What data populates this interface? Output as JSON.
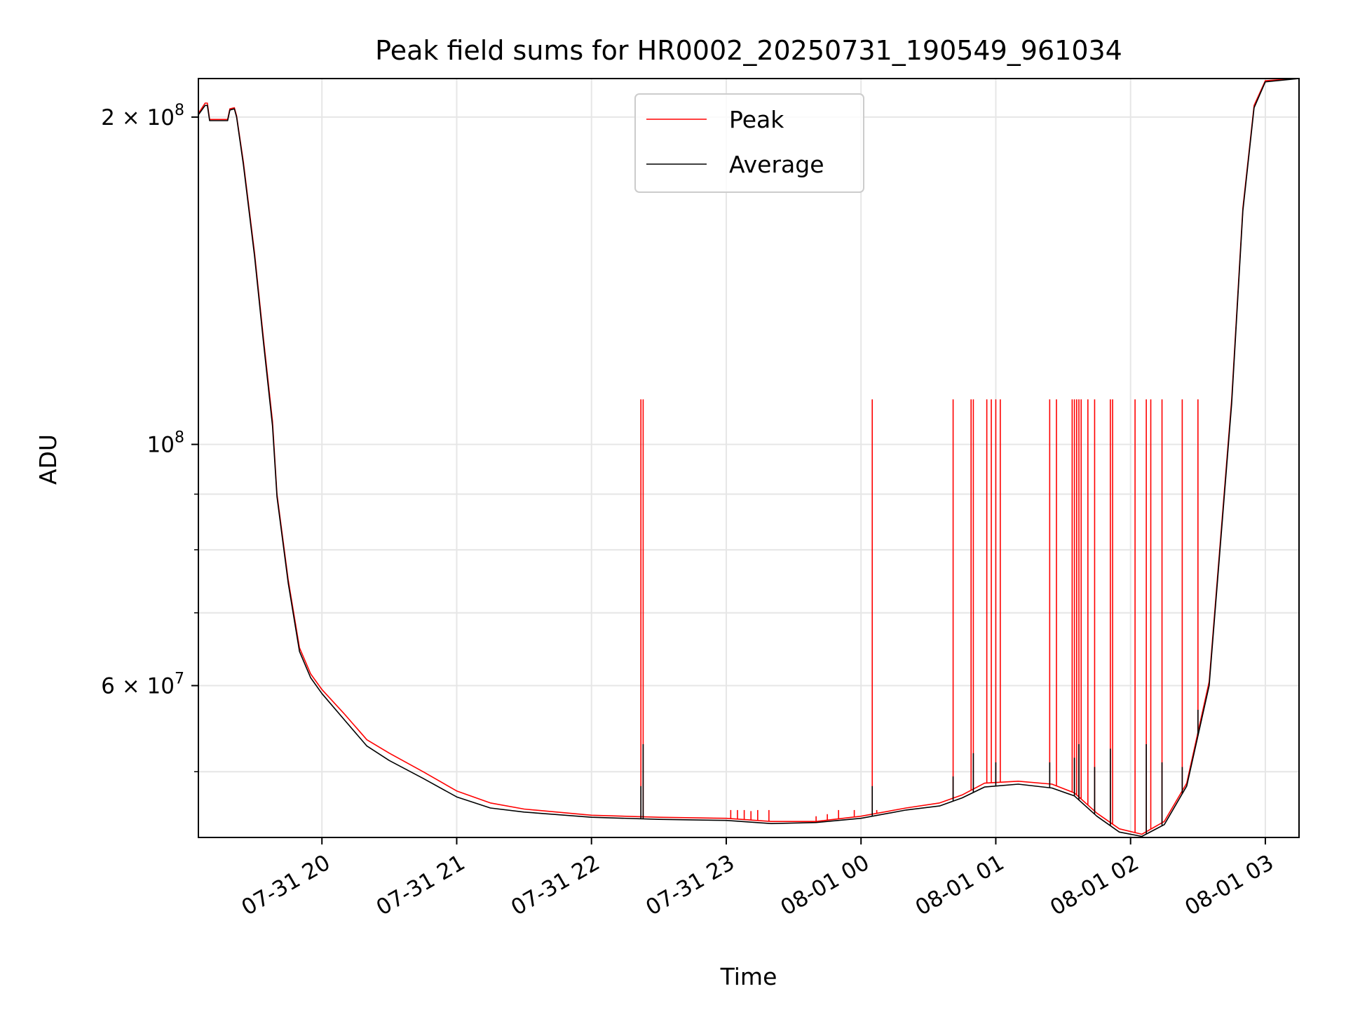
{
  "chart_data": {
    "type": "line",
    "title": "Peak field sums for HR0002_20250731_190549_961034",
    "xlabel": "Time",
    "ylabel": "ADU",
    "y_scale": "log",
    "x_unit": "time",
    "xlim": [
      "07-31 19:05",
      "08-01 03:15"
    ],
    "ylim": [
      43500000,
      217000000
    ],
    "x_ticks": [
      "07-31 20",
      "07-31 21",
      "07-31 22",
      "07-31 23",
      "08-01 00",
      "08-01 01",
      "08-01 02",
      "08-01 03"
    ],
    "x_tick_times": [
      "07-31 20:00",
      "07-31 21:00",
      "07-31 22:00",
      "07-31 23:00",
      "08-01 00:00",
      "08-01 01:00",
      "08-01 02:00",
      "08-01 03:00"
    ],
    "y_ticks_major": [
      {
        "value": 200000000,
        "mant": "2 × 10",
        "exp": "8"
      },
      {
        "value": 100000000,
        "mant": "10",
        "exp": "8"
      },
      {
        "value": 60000000,
        "mant": "6 × 10",
        "exp": "7"
      }
    ],
    "y_ticks_minor": [
      50000000,
      70000000,
      80000000,
      90000000
    ],
    "grid": true,
    "legend_position": "top-center",
    "series": [
      {
        "name": "Peak",
        "color": "#ff0000",
        "points": [
          [
            "07-31 19:05",
            201500000
          ],
          [
            "07-31 19:08",
            206000000
          ],
          [
            "07-31 19:09",
            206000000
          ],
          [
            "07-31 19:10",
            199000000
          ],
          [
            "07-31 19:18",
            199000000
          ],
          [
            "07-31 19:19",
            203500000
          ],
          [
            "07-31 19:21",
            204000000
          ],
          [
            "07-31 19:22",
            200500000
          ],
          [
            "07-31 19:25",
            182000000
          ],
          [
            "07-31 19:30",
            150000000
          ],
          [
            "07-31 19:34",
            125000000
          ],
          [
            "07-31 19:38",
            105000000
          ],
          [
            "07-31 19:40",
            90000000
          ],
          [
            "07-31 19:45",
            75000000
          ],
          [
            "07-31 19:50",
            65000000
          ],
          [
            "07-31 19:55",
            61500000
          ],
          [
            "07-31 20:00",
            59500000
          ],
          [
            "07-31 20:10",
            56500000
          ],
          [
            "07-31 20:20",
            53500000
          ],
          [
            "07-31 20:30",
            52000000
          ],
          [
            "07-31 20:45",
            50000000
          ],
          [
            "07-31 21:00",
            48000000
          ],
          [
            "07-31 21:15",
            46800000
          ],
          [
            "07-31 21:30",
            46200000
          ],
          [
            "07-31 22:00",
            45600000
          ],
          [
            "07-31 22:30",
            45400000
          ],
          [
            "07-31 23:00",
            45300000
          ],
          [
            "07-31 23:20",
            45000000
          ],
          [
            "07-31 23:40",
            45000000
          ],
          [
            "08-01 00:00",
            45500000
          ],
          [
            "08-01 00:20",
            46300000
          ],
          [
            "08-01 00:35",
            46800000
          ],
          [
            "08-01 00:45",
            47600000
          ],
          [
            "08-01 00:55",
            48800000
          ],
          [
            "08-01 01:10",
            49000000
          ],
          [
            "08-01 01:25",
            48700000
          ],
          [
            "08-01 01:35",
            47800000
          ],
          [
            "08-01 01:45",
            45800000
          ],
          [
            "08-01 01:55",
            44300000
          ],
          [
            "08-01 02:05",
            43800000
          ],
          [
            "08-01 02:15",
            45000000
          ],
          [
            "08-01 02:25",
            48800000
          ],
          [
            "08-01 02:35",
            60500000
          ],
          [
            "08-01 02:45",
            110000000
          ],
          [
            "08-01 02:50",
            165000000
          ],
          [
            "08-01 02:55",
            205000000
          ],
          [
            "08-01 03:00",
            216000000
          ],
          [
            "08-01 03:15",
            217000000
          ]
        ]
      },
      {
        "name": "Average",
        "color": "#000000",
        "points": [
          [
            "07-31 19:05",
            201000000
          ],
          [
            "07-31 19:08",
            205000000
          ],
          [
            "07-31 19:09",
            205000000
          ],
          [
            "07-31 19:10",
            198500000
          ],
          [
            "07-31 19:18",
            198500000
          ],
          [
            "07-31 19:19",
            203000000
          ],
          [
            "07-31 19:21",
            203500000
          ],
          [
            "07-31 19:22",
            200000000
          ],
          [
            "07-31 19:25",
            181000000
          ],
          [
            "07-31 19:30",
            149000000
          ],
          [
            "07-31 19:34",
            124000000
          ],
          [
            "07-31 19:38",
            104000000
          ],
          [
            "07-31 19:40",
            89500000
          ],
          [
            "07-31 19:45",
            74500000
          ],
          [
            "07-31 19:50",
            64500000
          ],
          [
            "07-31 19:55",
            61000000
          ],
          [
            "07-31 20:00",
            59000000
          ],
          [
            "07-31 20:10",
            55800000
          ],
          [
            "07-31 20:20",
            52800000
          ],
          [
            "07-31 20:30",
            51200000
          ],
          [
            "07-31 20:45",
            49300000
          ],
          [
            "07-31 21:00",
            47400000
          ],
          [
            "07-31 21:15",
            46300000
          ],
          [
            "07-31 21:30",
            45900000
          ],
          [
            "07-31 22:00",
            45400000
          ],
          [
            "07-31 22:30",
            45200000
          ],
          [
            "07-31 23:00",
            45100000
          ],
          [
            "07-31 23:20",
            44800000
          ],
          [
            "07-31 23:40",
            44900000
          ],
          [
            "08-01 00:00",
            45300000
          ],
          [
            "08-01 00:20",
            46100000
          ],
          [
            "08-01 00:35",
            46500000
          ],
          [
            "08-01 00:45",
            47300000
          ],
          [
            "08-01 00:55",
            48400000
          ],
          [
            "08-01 01:10",
            48700000
          ],
          [
            "08-01 01:25",
            48300000
          ],
          [
            "08-01 01:35",
            47500000
          ],
          [
            "08-01 01:45",
            45500000
          ],
          [
            "08-01 01:55",
            44000000
          ],
          [
            "08-01 02:05",
            43600000
          ],
          [
            "08-01 02:15",
            44700000
          ],
          [
            "08-01 02:25",
            48500000
          ],
          [
            "08-01 02:35",
            60000000
          ],
          [
            "08-01 02:45",
            109000000
          ],
          [
            "08-01 02:50",
            164000000
          ],
          [
            "08-01 02:55",
            204000000
          ],
          [
            "08-01 03:00",
            215500000
          ],
          [
            "08-01 03:15",
            217000000
          ]
        ]
      }
    ],
    "peak_spikes": [
      [
        "07-31 22:22",
        110000000
      ],
      [
        "07-31 22:23",
        110000000
      ],
      [
        "08-01 00:05",
        110000000
      ],
      [
        "08-01 00:41",
        110000000
      ],
      [
        "08-01 00:49",
        110000000
      ],
      [
        "08-01 00:50",
        110000000
      ],
      [
        "08-01 00:56",
        110000000
      ],
      [
        "08-01 00:58",
        110000000
      ],
      [
        "08-01 01:00",
        110000000
      ],
      [
        "08-01 01:02",
        110000000
      ],
      [
        "08-01 01:24",
        110000000
      ],
      [
        "08-01 01:27",
        110000000
      ],
      [
        "08-01 01:34",
        110000000
      ],
      [
        "08-01 01:35",
        110000000
      ],
      [
        "08-01 01:36",
        110000000
      ],
      [
        "08-01 01:37",
        110000000
      ],
      [
        "08-01 01:38",
        110000000
      ],
      [
        "08-01 01:41",
        110000000
      ],
      [
        "08-01 01:44",
        110000000
      ],
      [
        "08-01 01:51",
        110000000
      ],
      [
        "08-01 01:52",
        110000000
      ],
      [
        "08-01 02:02",
        110000000
      ],
      [
        "08-01 02:07",
        110000000
      ],
      [
        "08-01 02:09",
        110000000
      ],
      [
        "08-01 02:14",
        110000000
      ],
      [
        "08-01 02:23",
        110000000
      ],
      [
        "08-01 02:30",
        110000000
      ],
      [
        "07-31 23:02",
        46100000
      ],
      [
        "07-31 23:05",
        46100000
      ],
      [
        "07-31 23:08",
        46100000
      ],
      [
        "07-31 23:11",
        46000000
      ],
      [
        "07-31 23:14",
        46100000
      ],
      [
        "07-31 23:19",
        46100000
      ],
      [
        "07-31 23:40",
        45500000
      ],
      [
        "07-31 23:45",
        45700000
      ],
      [
        "07-31 23:50",
        46100000
      ],
      [
        "07-31 23:57",
        46100000
      ],
      [
        "08-01 00:07",
        46100000
      ]
    ],
    "average_spikes": [
      [
        "07-31 22:22",
        48500000
      ],
      [
        "07-31 22:23",
        53000000
      ],
      [
        "08-01 00:05",
        48500000
      ],
      [
        "08-01 00:41",
        49500000
      ],
      [
        "08-01 00:50",
        52000000
      ],
      [
        "08-01 01:00",
        51000000
      ],
      [
        "08-01 01:24",
        51000000
      ],
      [
        "08-01 01:35",
        51500000
      ],
      [
        "08-01 01:37",
        53000000
      ],
      [
        "08-01 01:44",
        50500000
      ],
      [
        "08-01 01:51",
        52500000
      ],
      [
        "08-01 02:07",
        53000000
      ],
      [
        "08-01 02:14",
        51000000
      ],
      [
        "08-01 02:23",
        50500000
      ],
      [
        "08-01 02:30",
        57000000
      ]
    ]
  }
}
